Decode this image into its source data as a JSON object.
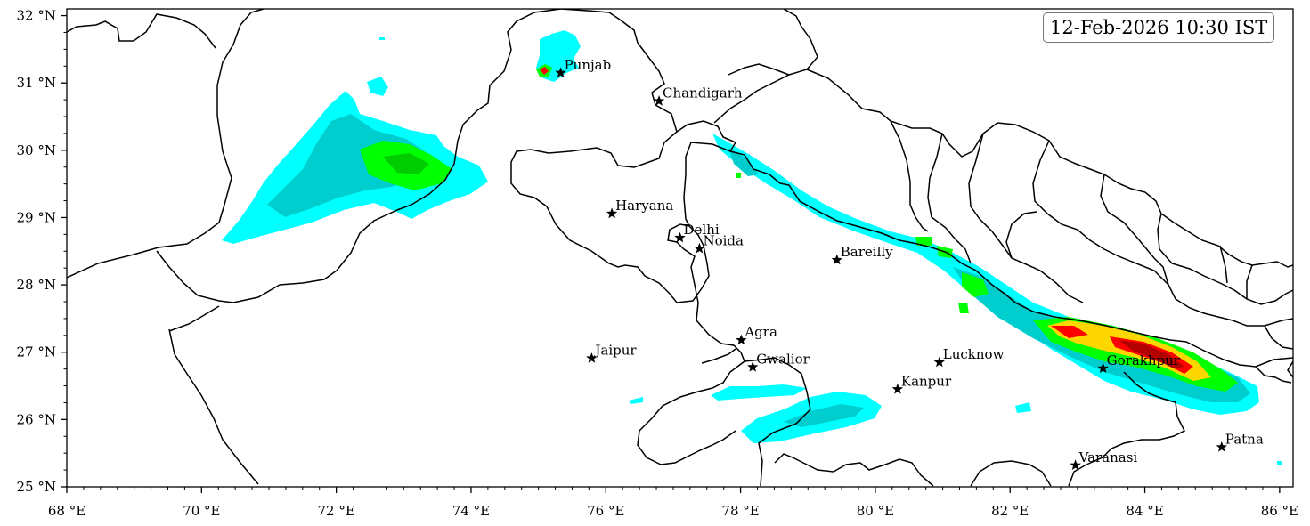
{
  "map": {
    "timestamp": "12-Feb-2026 10:30 IST",
    "extent": {
      "lon_min": 68,
      "lon_max": 86.2,
      "lat_min": 25,
      "lat_max": 32.1
    },
    "lon_ticks": [
      68,
      70,
      72,
      74,
      76,
      78,
      80,
      82,
      84,
      86
    ],
    "lon_tick_labels": [
      "68 °E",
      "70 °E",
      "72 °E",
      "74 °E",
      "76 °E",
      "78 °E",
      "80 °E",
      "82 °E",
      "84 °E",
      "86 °E"
    ],
    "lat_ticks": [
      25,
      26,
      27,
      28,
      29,
      30,
      31,
      32
    ],
    "lat_tick_labels": [
      "25 °N",
      "26 °N",
      "27 °N",
      "28 °N",
      "29 °N",
      "30 °N",
      "31 °N",
      "32 °N"
    ],
    "cities": [
      {
        "name": "Punjab",
        "lon": 75.33,
        "lat": 31.15
      },
      {
        "name": "Chandigarh",
        "lon": 76.79,
        "lat": 30.73
      },
      {
        "name": "Haryana",
        "lon": 76.09,
        "lat": 29.06
      },
      {
        "name": "Delhi",
        "lon": 77.1,
        "lat": 28.7
      },
      {
        "name": "Noida",
        "lon": 77.39,
        "lat": 28.54
      },
      {
        "name": "Bareilly",
        "lon": 79.43,
        "lat": 28.37
      },
      {
        "name": "Agra",
        "lon": 78.01,
        "lat": 27.18
      },
      {
        "name": "Jaipur",
        "lon": 75.79,
        "lat": 26.91
      },
      {
        "name": "Gwalior",
        "lon": 78.18,
        "lat": 26.78
      },
      {
        "name": "Lucknow",
        "lon": 80.95,
        "lat": 26.85
      },
      {
        "name": "Kanpur",
        "lon": 80.33,
        "lat": 26.45
      },
      {
        "name": "Gorakhpur",
        "lon": 83.38,
        "lat": 26.76
      },
      {
        "name": "Varanasi",
        "lon": 82.97,
        "lat": 25.32
      },
      {
        "name": "Patna",
        "lon": 85.14,
        "lat": 25.59
      }
    ],
    "colors": {
      "level1": "#00ffff",
      "level2": "#00cdcd",
      "level3": "#00ff00",
      "level4": "#ffd700",
      "level5": "#ff0000",
      "level6": "#b30000",
      "boundary": "#000000"
    }
  }
}
